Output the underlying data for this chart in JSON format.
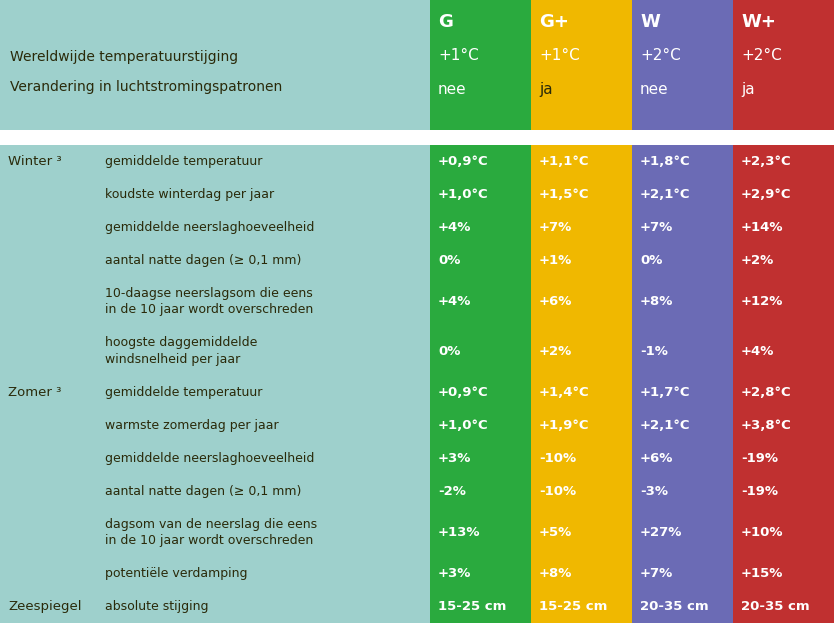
{
  "bg_color": "#9ed0cc",
  "col_colors": [
    "#2aaa3e",
    "#f0b800",
    "#6b6bb5",
    "#c03030"
  ],
  "col_labels": [
    "G",
    "G+",
    "W",
    "W+"
  ],
  "header_line1": "Wereldwijde temperatuurstijging",
  "header_line2": "Verandering in luchtstromingspatronen",
  "header_temp": [
    "+1°C",
    "+1°C",
    "+2°C",
    "+2°C"
  ],
  "header_wind": [
    "nee",
    "ja",
    "nee",
    "ja"
  ],
  "header_wind_dark": [
    false,
    true,
    false,
    false
  ],
  "rows": [
    {
      "season": "Winter ³",
      "label": "gemiddelde temperatuur",
      "values": [
        "+0,9°C",
        "+1,1°C",
        "+1,8°C",
        "+2,3°C"
      ],
      "multiline": false
    },
    {
      "season": "",
      "label": "koudste winterdag per jaar",
      "values": [
        "+1,0°C",
        "+1,5°C",
        "+2,1°C",
        "+2,9°C"
      ],
      "multiline": false
    },
    {
      "season": "",
      "label": "gemiddelde neerslaghoeveelheid",
      "values": [
        "+4%",
        "+7%",
        "+7%",
        "+14%"
      ],
      "multiline": false
    },
    {
      "season": "",
      "label": "aantal natte dagen (≥ 0,1 mm)",
      "values": [
        "0%",
        "+1%",
        "0%",
        "+2%"
      ],
      "multiline": false
    },
    {
      "season": "",
      "label": "10-daagse neerslagsom die eens\nin de 10 jaar wordt overschreden",
      "values": [
        "+4%",
        "+6%",
        "+8%",
        "+12%"
      ],
      "multiline": true
    },
    {
      "season": "",
      "label": "hoogste daggemiddelde\nwindsnelheid per jaar",
      "values": [
        "0%",
        "+2%",
        "-1%",
        "+4%"
      ],
      "multiline": true
    },
    {
      "season": "Zomer ³",
      "label": "gemiddelde temperatuur",
      "values": [
        "+0,9°C",
        "+1,4°C",
        "+1,7°C",
        "+2,8°C"
      ],
      "multiline": false
    },
    {
      "season": "",
      "label": "warmste zomerdag per jaar",
      "values": [
        "+1,0°C",
        "+1,9°C",
        "+2,1°C",
        "+3,8°C"
      ],
      "multiline": false
    },
    {
      "season": "",
      "label": "gemiddelde neerslaghoeveelheid",
      "values": [
        "+3%",
        "-10%",
        "+6%",
        "-19%"
      ],
      "multiline": false
    },
    {
      "season": "",
      "label": "aantal natte dagen (≥ 0,1 mm)",
      "values": [
        "-2%",
        "-10%",
        "-3%",
        "-19%"
      ],
      "multiline": false
    },
    {
      "season": "",
      "label": "dagsom van de neerslag die eens\nin de 10 jaar wordt overschreden",
      "values": [
        "+13%",
        "+5%",
        "+27%",
        "+10%"
      ],
      "multiline": true
    },
    {
      "season": "",
      "label": "potentiële verdamping",
      "values": [
        "+3%",
        "+8%",
        "+7%",
        "+15%"
      ],
      "multiline": false
    },
    {
      "season": "Zeespiegel",
      "label": "absolute stijging",
      "values": [
        "15-25 cm",
        "15-25 cm",
        "20-35 cm",
        "20-35 cm"
      ],
      "multiline": false
    }
  ],
  "white_color": "#ffffff",
  "dark_text": "#2a2a0a",
  "fig_w": 8.34,
  "fig_h": 6.23,
  "dpi": 100
}
